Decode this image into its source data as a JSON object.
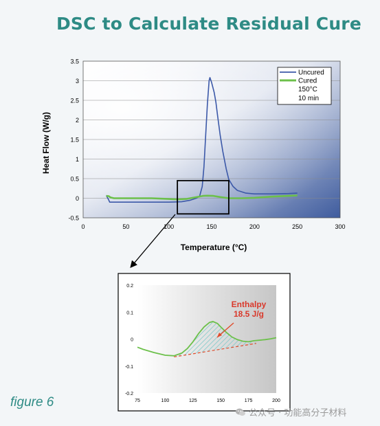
{
  "page": {
    "title": "DSC to Calculate Residual Cure",
    "caption": "figure 6",
    "watermark": "公众号 · 功能高分子材料",
    "watermark_icon": "wechat-icon"
  },
  "chart_data": [
    {
      "type": "line",
      "title": "",
      "xlabel": "Temperature (°C)",
      "ylabel": "Heat Flow (W/g)",
      "xlim": [
        0,
        300
      ],
      "ylim": [
        -0.5,
        3.5
      ],
      "xticks": [
        "0",
        "50",
        "100",
        "150",
        "200",
        "250",
        "300"
      ],
      "yticks": [
        "-0.5",
        "0",
        "0.5",
        "1",
        "1.5",
        "2",
        "2.5",
        "3",
        "3.5"
      ],
      "grid": true,
      "legend": "top-right",
      "legend_note": [
        "150°C",
        "10 min"
      ],
      "colors": {
        "Uncured": "#3b58a8",
        "Cured": "#6cc04a"
      },
      "series": [
        {
          "name": "Uncured",
          "points": [
            [
              27,
              0.07
            ],
            [
              30,
              -0.05
            ],
            [
              31,
              -0.1
            ],
            [
              50,
              -0.1
            ],
            [
              80,
              -0.1
            ],
            [
              100,
              -0.1
            ],
            [
              115,
              -0.09
            ],
            [
              125,
              -0.05
            ],
            [
              132,
              0
            ],
            [
              136,
              0.05
            ],
            [
              139,
              0.3
            ],
            [
              141,
              0.8
            ],
            [
              143,
              1.6
            ],
            [
              145,
              2.4
            ],
            [
              147,
              3.0
            ],
            [
              148,
              3.08
            ],
            [
              150,
              2.95
            ],
            [
              153,
              2.7
            ],
            [
              155,
              2.45
            ],
            [
              157,
              2.1
            ],
            [
              160,
              1.6
            ],
            [
              163,
              1.2
            ],
            [
              167,
              0.75
            ],
            [
              170,
              0.48
            ],
            [
              175,
              0.3
            ],
            [
              180,
              0.2
            ],
            [
              190,
              0.13
            ],
            [
              200,
              0.11
            ],
            [
              220,
              0.11
            ],
            [
              240,
              0.12
            ],
            [
              250,
              0.13
            ]
          ]
        },
        {
          "name": "Cured",
          "points": [
            [
              27,
              0.06
            ],
            [
              30,
              0.05
            ],
            [
              32,
              0.02
            ],
            [
              36,
              0
            ],
            [
              60,
              0
            ],
            [
              80,
              0
            ],
            [
              100,
              -0.02
            ],
            [
              110,
              -0.03
            ],
            [
              120,
              -0.02
            ],
            [
              130,
              0.02
            ],
            [
              140,
              0.06
            ],
            [
              145,
              0.065
            ],
            [
              152,
              0.06
            ],
            [
              160,
              0.03
            ],
            [
              170,
              0
            ],
            [
              185,
              0
            ],
            [
              200,
              0.01
            ],
            [
              220,
              0.04
            ],
            [
              240,
              0.06
            ],
            [
              250,
              0.07
            ]
          ]
        }
      ],
      "zoom_box_x": [
        110,
        170
      ],
      "zoom_box_y": [
        -0.4,
        0.45
      ]
    },
    {
      "type": "area",
      "title": "",
      "xlim": [
        75,
        200
      ],
      "ylim": [
        -0.2,
        0.2
      ],
      "xticks": [
        "75",
        "100",
        "125",
        "150",
        "175",
        "200"
      ],
      "yticks": [
        "-0.2",
        "-0.1",
        "0",
        "0.1",
        "0.2"
      ],
      "annotation": [
        "Enthalpy",
        "18.5 J/g"
      ],
      "colors": {
        "curve": "#6cc04a",
        "baseline": "#e04a2a",
        "annotation": "#d9382a",
        "hatch": "#7fc9c9"
      },
      "series": [
        {
          "name": "",
          "points": [
            [
              75,
              -0.03
            ],
            [
              80,
              -0.038
            ],
            [
              90,
              -0.05
            ],
            [
              100,
              -0.06
            ],
            [
              108,
              -0.062
            ],
            [
              115,
              -0.052
            ],
            [
              120,
              -0.035
            ],
            [
              125,
              -0.01
            ],
            [
              130,
              0.02
            ],
            [
              135,
              0.045
            ],
            [
              140,
              0.062
            ],
            [
              143,
              0.065
            ],
            [
              147,
              0.058
            ],
            [
              150,
              0.045
            ],
            [
              155,
              0.025
            ],
            [
              160,
              0.008
            ],
            [
              165,
              -0.002
            ],
            [
              170,
              -0.008
            ],
            [
              175,
              -0.01
            ],
            [
              180,
              -0.006
            ],
            [
              190,
              -0.002
            ],
            [
              195,
              0.001
            ],
            [
              200,
              0.005
            ]
          ]
        }
      ],
      "baseline": [
        [
          108,
          -0.066
        ],
        [
          182,
          -0.016
        ]
      ]
    }
  ]
}
